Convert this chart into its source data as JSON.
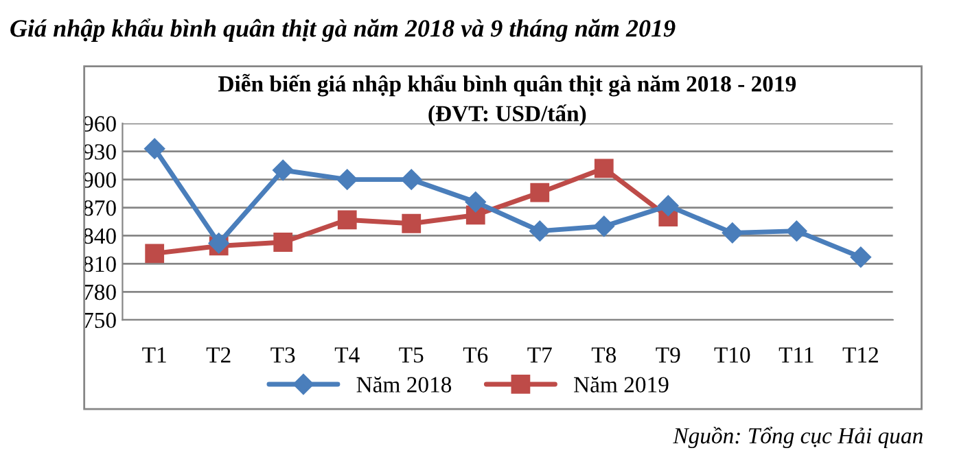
{
  "chart_data": {
    "type": "line",
    "title": "Diễn biến giá nhập khẩu bình quân thịt gà năm 2018 - 2019",
    "subtitle": "(ĐVT: USD/tấn)",
    "annotations": [
      "Giá nhập khẩu bình quân thịt gà năm 2018 và 9 tháng năm 2019",
      "Nguồn: Tổng cục Hải quan"
    ],
    "categories": [
      "T1",
      "T2",
      "T3",
      "T4",
      "T5",
      "T6",
      "T7",
      "T8",
      "T9",
      "T10",
      "T11",
      "T12"
    ],
    "series": [
      {
        "name": "Năm 2018",
        "color": "#4a7ebb",
        "marker": "diamond",
        "values": [
          933,
          832,
          910,
          900,
          900,
          876,
          845,
          850,
          872,
          843,
          845,
          817
        ]
      },
      {
        "name": "Năm 2019",
        "color": "#be4b48",
        "marker": "square",
        "values": [
          821,
          829,
          833,
          857,
          853,
          862,
          886,
          912,
          860,
          null,
          null,
          null
        ]
      }
    ],
    "ylim": [
      750,
      960
    ],
    "yticks": [
      750,
      780,
      810,
      840,
      870,
      900,
      930,
      960
    ],
    "grid": "y",
    "legend": "bottom"
  }
}
